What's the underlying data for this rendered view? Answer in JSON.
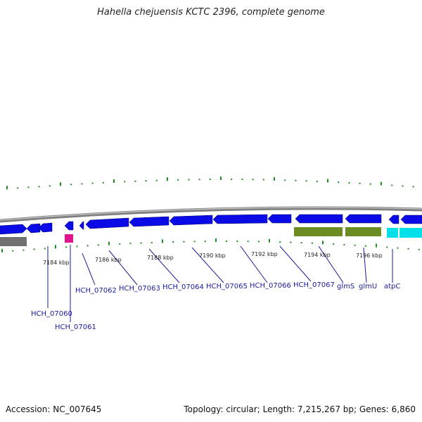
{
  "title": "Hahella chejuensis KCTC 2396, complete genome",
  "footer": {
    "accession": "Accession: NC_007645",
    "summary": "Topology: circular; Length: 7,215,267 bp; Genes: 6,860"
  },
  "colors": {
    "backbone": "#808080",
    "cds_strand": "#0a0ae6",
    "pseudo": "#e0148c",
    "rna": "#6b8c23",
    "cyan_feature": "#00e0e8",
    "gray_feature": "#707070",
    "ticks": "#1e8c1e",
    "label": "#1a1aa0"
  },
  "scale_labels": [
    "7184 kbp",
    "7186 kbp",
    "7188 kbp",
    "7190 kbp",
    "7192 kbp",
    "7194 kbp",
    "7196 kbp"
  ],
  "gene_labels": [
    "HCH_07060",
    "HCH_07061",
    "HCH_07062",
    "HCH_07063",
    "HCH_07064",
    "HCH_07065",
    "HCH_07066",
    "HCH_07067",
    "glmS",
    "glmU",
    "atpC"
  ]
}
